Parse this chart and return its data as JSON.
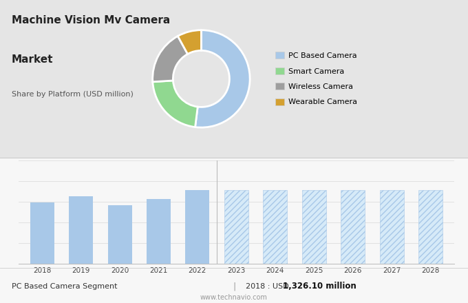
{
  "title_line1": "Machine Vision Mv Camera",
  "title_line2": "Market",
  "subtitle": "Share by Platform (USD million)",
  "pie_labels": [
    "PC Based Camera",
    "Smart Camera",
    "Wireless Camera",
    "Wearable Camera"
  ],
  "pie_values": [
    52,
    22,
    18,
    8
  ],
  "pie_colors": [
    "#a8c8e8",
    "#90d890",
    "#9e9e9e",
    "#d4a030"
  ],
  "bar_years_actual": [
    2018,
    2019,
    2020,
    2021,
    2022
  ],
  "bar_values_actual": [
    68,
    75,
    65,
    72,
    82
  ],
  "bar_years_forecast": [
    2023,
    2024,
    2025,
    2026,
    2027,
    2028
  ],
  "bar_values_forecast": [
    82,
    82,
    82,
    82,
    82,
    82
  ],
  "bar_color_actual": "#a8c8e8",
  "bar_color_forecast_face": "#d6eaf8",
  "bar_color_forecast_edge": "#a8c8e8",
  "top_bg_color": "#e5e5e5",
  "bottom_bg_color": "#f7f7f7",
  "footer_left": "PC Based Camera Segment",
  "footer_value": "2018 : USD ",
  "footer_bold": "1,326.10 million",
  "footer_url": "www.technavio.com",
  "legend_labels": [
    "PC Based Camera",
    "Smart Camera",
    "Wireless Camera",
    "Wearable Camera"
  ],
  "legend_colors": [
    "#a8c8e8",
    "#90d890",
    "#9e9e9e",
    "#d4a030"
  ],
  "hatch_pattern": "////"
}
